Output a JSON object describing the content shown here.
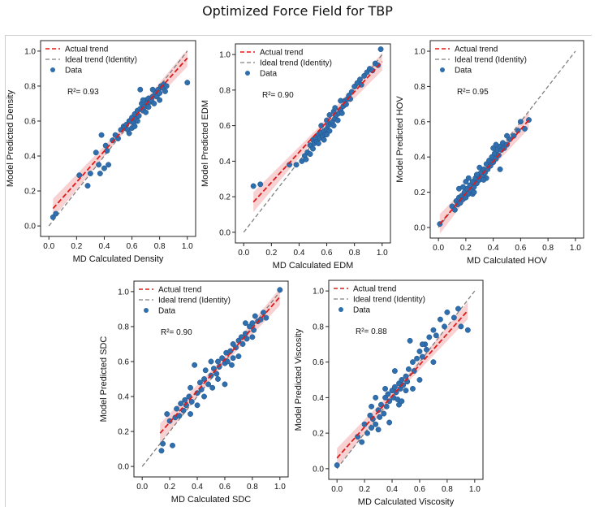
{
  "figure_title": "Optimized Force Field for TBP",
  "colors": {
    "data": "#2f6fae",
    "data_edge": "#1f4f86",
    "actual_trend": "#e01b1b",
    "band": "#f4b4b4",
    "ideal_trend": "#808080"
  },
  "legend_labels": {
    "actual": "Actual trend",
    "ideal": "Ideal trend (Identity)",
    "data": "Data"
  },
  "chart_data": [
    {
      "type": "scatter",
      "xlabel": "MD Calculated Density",
      "ylabel": "Model Predicted Density",
      "r2_label": "R²= 0.93",
      "xlim": [
        0,
        1
      ],
      "ylim": [
        0,
        1
      ],
      "xticks": [
        "0.0",
        "0.2",
        "0.4",
        "0.6",
        "0.8",
        "1.0"
      ],
      "yticks": [
        "0.0",
        "0.2",
        "0.4",
        "0.6",
        "0.8",
        "1.0"
      ],
      "legend": "top-left",
      "grid": false,
      "fit_line": {
        "x": [
          0.03,
          1.0
        ],
        "y": [
          0.1,
          0.96
        ]
      },
      "points": [
        [
          0.03,
          0.05
        ],
        [
          0.05,
          0.07
        ],
        [
          0.22,
          0.29
        ],
        [
          0.28,
          0.23
        ],
        [
          0.3,
          0.3
        ],
        [
          0.34,
          0.42
        ],
        [
          0.36,
          0.35
        ],
        [
          0.37,
          0.3
        ],
        [
          0.38,
          0.52
        ],
        [
          0.4,
          0.33
        ],
        [
          0.41,
          0.46
        ],
        [
          0.42,
          0.43
        ],
        [
          0.43,
          0.35
        ],
        [
          0.46,
          0.49
        ],
        [
          0.5,
          0.5
        ],
        [
          0.52,
          0.55
        ],
        [
          0.54,
          0.57
        ],
        [
          0.55,
          0.56
        ],
        [
          0.56,
          0.58
        ],
        [
          0.57,
          0.55
        ],
        [
          0.58,
          0.6
        ],
        [
          0.59,
          0.6
        ],
        [
          0.6,
          0.62
        ],
        [
          0.61,
          0.59
        ],
        [
          0.62,
          0.64
        ],
        [
          0.63,
          0.61
        ],
        [
          0.64,
          0.66
        ],
        [
          0.65,
          0.63
        ],
        [
          0.66,
          0.67
        ],
        [
          0.67,
          0.7
        ],
        [
          0.68,
          0.66
        ],
        [
          0.69,
          0.68
        ],
        [
          0.7,
          0.72
        ],
        [
          0.71,
          0.7
        ],
        [
          0.72,
          0.73
        ],
        [
          0.73,
          0.71
        ],
        [
          0.74,
          0.72
        ],
        [
          0.75,
          0.74
        ],
        [
          0.76,
          0.7
        ],
        [
          0.77,
          0.76
        ],
        [
          0.78,
          0.74
        ],
        [
          0.79,
          0.78
        ],
        [
          0.8,
          0.76
        ],
        [
          0.81,
          0.8
        ],
        [
          0.82,
          0.79
        ],
        [
          0.83,
          0.81
        ],
        [
          0.84,
          0.77
        ],
        [
          0.85,
          0.8
        ],
        [
          0.66,
          0.78
        ],
        [
          0.7,
          0.65
        ],
        [
          0.58,
          0.53
        ],
        [
          0.6,
          0.56
        ],
        [
          0.72,
          0.68
        ],
        [
          0.75,
          0.78
        ],
        [
          0.64,
          0.6
        ],
        [
          0.68,
          0.72
        ],
        [
          0.8,
          0.72
        ],
        [
          1.0,
          0.82
        ],
        [
          0.48,
          0.52
        ],
        [
          0.62,
          0.57
        ]
      ]
    },
    {
      "type": "scatter",
      "xlabel": "MD Calculated EDM",
      "ylabel": "Model Predicted EDM",
      "r2_label": "R²= 0.90",
      "xlim": [
        0,
        1
      ],
      "ylim": [
        0,
        1
      ],
      "xticks": [
        "0.0",
        "0.2",
        "0.4",
        "0.6",
        "0.8",
        "1.0"
      ],
      "yticks": [
        "0.0",
        "0.2",
        "0.4",
        "0.6",
        "0.8",
        "1.0"
      ],
      "legend": "top-left",
      "grid": false,
      "fit_line": {
        "x": [
          0.07,
          1.0
        ],
        "y": [
          0.17,
          0.96
        ]
      },
      "points": [
        [
          0.07,
          0.26
        ],
        [
          0.12,
          0.27
        ],
        [
          0.33,
          0.38
        ],
        [
          0.38,
          0.38
        ],
        [
          0.42,
          0.4
        ],
        [
          0.44,
          0.43
        ],
        [
          0.45,
          0.41
        ],
        [
          0.46,
          0.45
        ],
        [
          0.48,
          0.49
        ],
        [
          0.5,
          0.47
        ],
        [
          0.5,
          0.52
        ],
        [
          0.51,
          0.5
        ],
        [
          0.52,
          0.53
        ],
        [
          0.53,
          0.51
        ],
        [
          0.54,
          0.55
        ],
        [
          0.55,
          0.53
        ],
        [
          0.56,
          0.56
        ],
        [
          0.57,
          0.54
        ],
        [
          0.58,
          0.57
        ],
        [
          0.59,
          0.55
        ],
        [
          0.6,
          0.58
        ],
        [
          0.61,
          0.6
        ],
        [
          0.62,
          0.57
        ],
        [
          0.63,
          0.61
        ],
        [
          0.64,
          0.62
        ],
        [
          0.65,
          0.6
        ],
        [
          0.66,
          0.64
        ],
        [
          0.67,
          0.66
        ],
        [
          0.68,
          0.63
        ],
        [
          0.69,
          0.67
        ],
        [
          0.7,
          0.69
        ],
        [
          0.71,
          0.67
        ],
        [
          0.72,
          0.71
        ],
        [
          0.73,
          0.74
        ],
        [
          0.74,
          0.72
        ],
        [
          0.75,
          0.75
        ],
        [
          0.76,
          0.77
        ],
        [
          0.77,
          0.75
        ],
        [
          0.78,
          0.79
        ],
        [
          0.8,
          0.82
        ],
        [
          0.82,
          0.84
        ],
        [
          0.84,
          0.86
        ],
        [
          0.85,
          0.83
        ],
        [
          0.87,
          0.88
        ],
        [
          0.89,
          0.9
        ],
        [
          0.91,
          0.92
        ],
        [
          0.93,
          0.91
        ],
        [
          0.95,
          0.95
        ],
        [
          0.97,
          0.94
        ],
        [
          0.99,
          1.03
        ],
        [
          0.56,
          0.6
        ],
        [
          0.6,
          0.63
        ],
        [
          0.58,
          0.52
        ],
        [
          0.62,
          0.66
        ],
        [
          0.65,
          0.68
        ],
        [
          0.54,
          0.5
        ],
        [
          0.48,
          0.44
        ],
        [
          0.7,
          0.74
        ],
        [
          0.6,
          0.55
        ],
        [
          0.66,
          0.7
        ]
      ]
    },
    {
      "type": "scatter",
      "xlabel": "MD Calculated HOV",
      "ylabel": "Model Predicted HOV",
      "r2_label": "R²= 0.95",
      "xlim": [
        0,
        1
      ],
      "ylim": [
        0,
        1
      ],
      "xticks": [
        "0.0",
        "0.2",
        "0.4",
        "0.6",
        "0.8",
        "1.0"
      ],
      "yticks": [
        "0.0",
        "0.2",
        "0.4",
        "0.6",
        "0.8",
        "1.0"
      ],
      "legend": "top-left",
      "grid": false,
      "fit_line": {
        "x": [
          0.01,
          0.66
        ],
        "y": [
          0.02,
          0.61
        ]
      },
      "points": [
        [
          0.01,
          0.02
        ],
        [
          0.1,
          0.12
        ],
        [
          0.12,
          0.1
        ],
        [
          0.13,
          0.15
        ],
        [
          0.14,
          0.13
        ],
        [
          0.15,
          0.17
        ],
        [
          0.16,
          0.14
        ],
        [
          0.17,
          0.18
        ],
        [
          0.18,
          0.16
        ],
        [
          0.19,
          0.2
        ],
        [
          0.2,
          0.17
        ],
        [
          0.21,
          0.22
        ],
        [
          0.22,
          0.19
        ],
        [
          0.23,
          0.24
        ],
        [
          0.24,
          0.21
        ],
        [
          0.25,
          0.26
        ],
        [
          0.26,
          0.23
        ],
        [
          0.27,
          0.28
        ],
        [
          0.28,
          0.25
        ],
        [
          0.29,
          0.3
        ],
        [
          0.3,
          0.27
        ],
        [
          0.31,
          0.31
        ],
        [
          0.32,
          0.29
        ],
        [
          0.33,
          0.33
        ],
        [
          0.34,
          0.31
        ],
        [
          0.35,
          0.36
        ],
        [
          0.36,
          0.33
        ],
        [
          0.37,
          0.38
        ],
        [
          0.38,
          0.35
        ],
        [
          0.39,
          0.4
        ],
        [
          0.4,
          0.37
        ],
        [
          0.41,
          0.42
        ],
        [
          0.42,
          0.39
        ],
        [
          0.43,
          0.44
        ],
        [
          0.44,
          0.41
        ],
        [
          0.45,
          0.46
        ],
        [
          0.46,
          0.44
        ],
        [
          0.47,
          0.48
        ],
        [
          0.48,
          0.45
        ],
        [
          0.5,
          0.47
        ],
        [
          0.52,
          0.5
        ],
        [
          0.55,
          0.52
        ],
        [
          0.58,
          0.55
        ],
        [
          0.6,
          0.6
        ],
        [
          0.63,
          0.56
        ],
        [
          0.66,
          0.61
        ],
        [
          0.45,
          0.33
        ],
        [
          0.2,
          0.26
        ],
        [
          0.25,
          0.19
        ],
        [
          0.35,
          0.28
        ],
        [
          0.15,
          0.22
        ],
        [
          0.3,
          0.34
        ],
        [
          0.4,
          0.45
        ],
        [
          0.28,
          0.3
        ],
        [
          0.22,
          0.28
        ],
        [
          0.18,
          0.23
        ],
        [
          0.33,
          0.27
        ],
        [
          0.42,
          0.47
        ],
        [
          0.5,
          0.52
        ],
        [
          0.26,
          0.2
        ]
      ]
    },
    {
      "type": "scatter",
      "xlabel": "MD Calculated SDC",
      "ylabel": "Model Predicted SDC",
      "r2_label": "R²= 0.90",
      "xlim": [
        0,
        1
      ],
      "ylim": [
        0,
        1
      ],
      "xticks": [
        "0.0",
        "0.2",
        "0.4",
        "0.6",
        "0.8",
        "1.0"
      ],
      "yticks": [
        "0.0",
        "0.2",
        "0.4",
        "0.6",
        "0.8",
        "1.0"
      ],
      "legend": "top-left",
      "grid": false,
      "fit_line": {
        "x": [
          0.13,
          1.0
        ],
        "y": [
          0.19,
          0.97
        ]
      },
      "points": [
        [
          0.14,
          0.09
        ],
        [
          0.15,
          0.13
        ],
        [
          0.18,
          0.3
        ],
        [
          0.2,
          0.26
        ],
        [
          0.22,
          0.12
        ],
        [
          0.24,
          0.28
        ],
        [
          0.25,
          0.33
        ],
        [
          0.27,
          0.29
        ],
        [
          0.28,
          0.36
        ],
        [
          0.3,
          0.32
        ],
        [
          0.31,
          0.38
        ],
        [
          0.32,
          0.35
        ],
        [
          0.34,
          0.4
        ],
        [
          0.35,
          0.45
        ],
        [
          0.36,
          0.37
        ],
        [
          0.38,
          0.58
        ],
        [
          0.4,
          0.42
        ],
        [
          0.42,
          0.48
        ],
        [
          0.43,
          0.44
        ],
        [
          0.45,
          0.5
        ],
        [
          0.46,
          0.55
        ],
        [
          0.48,
          0.47
        ],
        [
          0.5,
          0.52
        ],
        [
          0.51,
          0.45
        ],
        [
          0.52,
          0.56
        ],
        [
          0.54,
          0.53
        ],
        [
          0.55,
          0.6
        ],
        [
          0.56,
          0.57
        ],
        [
          0.58,
          0.62
        ],
        [
          0.6,
          0.59
        ],
        [
          0.61,
          0.65
        ],
        [
          0.62,
          0.6
        ],
        [
          0.64,
          0.66
        ],
        [
          0.65,
          0.58
        ],
        [
          0.66,
          0.7
        ],
        [
          0.68,
          0.68
        ],
        [
          0.7,
          0.72
        ],
        [
          0.72,
          0.74
        ],
        [
          0.73,
          0.7
        ],
        [
          0.75,
          0.76
        ],
        [
          0.76,
          0.73
        ],
        [
          0.78,
          0.8
        ],
        [
          0.8,
          0.82
        ],
        [
          0.81,
          0.78
        ],
        [
          0.82,
          0.86
        ],
        [
          0.84,
          0.83
        ],
        [
          0.86,
          0.84
        ],
        [
          0.88,
          0.88
        ],
        [
          0.9,
          0.85
        ],
        [
          1.0,
          1.01
        ],
        [
          0.6,
          0.47
        ],
        [
          0.4,
          0.35
        ],
        [
          0.7,
          0.63
        ],
        [
          0.8,
          0.74
        ],
        [
          0.5,
          0.6
        ],
        [
          0.45,
          0.4
        ],
        [
          0.66,
          0.62
        ],
        [
          0.55,
          0.5
        ],
        [
          0.75,
          0.82
        ],
        [
          0.35,
          0.3
        ]
      ]
    },
    {
      "type": "scatter",
      "xlabel": "MD Calculated Viscosity",
      "ylabel": "Model Predicted Viscosity",
      "r2_label": "R²= 0.88",
      "xlim": [
        0,
        1
      ],
      "ylim": [
        0,
        1
      ],
      "xticks": [
        "0.0",
        "0.2",
        "0.4",
        "0.6",
        "0.8",
        "1.0"
      ],
      "yticks": [
        "0.0",
        "0.2",
        "0.4",
        "0.6",
        "0.8",
        "1.0"
      ],
      "legend": "top-left",
      "grid": false,
      "fit_line": {
        "x": [
          0.0,
          0.95
        ],
        "y": [
          0.06,
          0.89
        ]
      },
      "points": [
        [
          0.0,
          0.02
        ],
        [
          0.15,
          0.18
        ],
        [
          0.18,
          0.15
        ],
        [
          0.2,
          0.25
        ],
        [
          0.22,
          0.2
        ],
        [
          0.24,
          0.3
        ],
        [
          0.25,
          0.23
        ],
        [
          0.26,
          0.28
        ],
        [
          0.28,
          0.25
        ],
        [
          0.3,
          0.33
        ],
        [
          0.31,
          0.29
        ],
        [
          0.32,
          0.36
        ],
        [
          0.34,
          0.31
        ],
        [
          0.35,
          0.4
        ],
        [
          0.36,
          0.35
        ],
        [
          0.37,
          0.42
        ],
        [
          0.38,
          0.38
        ],
        [
          0.4,
          0.44
        ],
        [
          0.41,
          0.4
        ],
        [
          0.42,
          0.46
        ],
        [
          0.43,
          0.43
        ],
        [
          0.44,
          0.39
        ],
        [
          0.45,
          0.48
        ],
        [
          0.46,
          0.45
        ],
        [
          0.47,
          0.5
        ],
        [
          0.48,
          0.47
        ],
        [
          0.5,
          0.52
        ],
        [
          0.51,
          0.49
        ],
        [
          0.52,
          0.56
        ],
        [
          0.53,
          0.72
        ],
        [
          0.55,
          0.6
        ],
        [
          0.56,
          0.55
        ],
        [
          0.58,
          0.62
        ],
        [
          0.6,
          0.66
        ],
        [
          0.62,
          0.63
        ],
        [
          0.64,
          0.7
        ],
        [
          0.65,
          0.67
        ],
        [
          0.67,
          0.74
        ],
        [
          0.7,
          0.78
        ],
        [
          0.72,
          0.75
        ],
        [
          0.75,
          0.84
        ],
        [
          0.78,
          0.8
        ],
        [
          0.8,
          0.88
        ],
        [
          0.85,
          0.85
        ],
        [
          0.88,
          0.9
        ],
        [
          0.9,
          0.8
        ],
        [
          0.95,
          0.78
        ],
        [
          0.3,
          0.22
        ],
        [
          0.28,
          0.4
        ],
        [
          0.45,
          0.36
        ],
        [
          0.5,
          0.44
        ],
        [
          0.6,
          0.5
        ],
        [
          0.38,
          0.26
        ],
        [
          0.42,
          0.55
        ],
        [
          0.55,
          0.45
        ],
        [
          0.25,
          0.35
        ],
        [
          0.62,
          0.7
        ],
        [
          0.35,
          0.45
        ],
        [
          0.47,
          0.38
        ],
        [
          0.7,
          0.6
        ]
      ]
    }
  ]
}
